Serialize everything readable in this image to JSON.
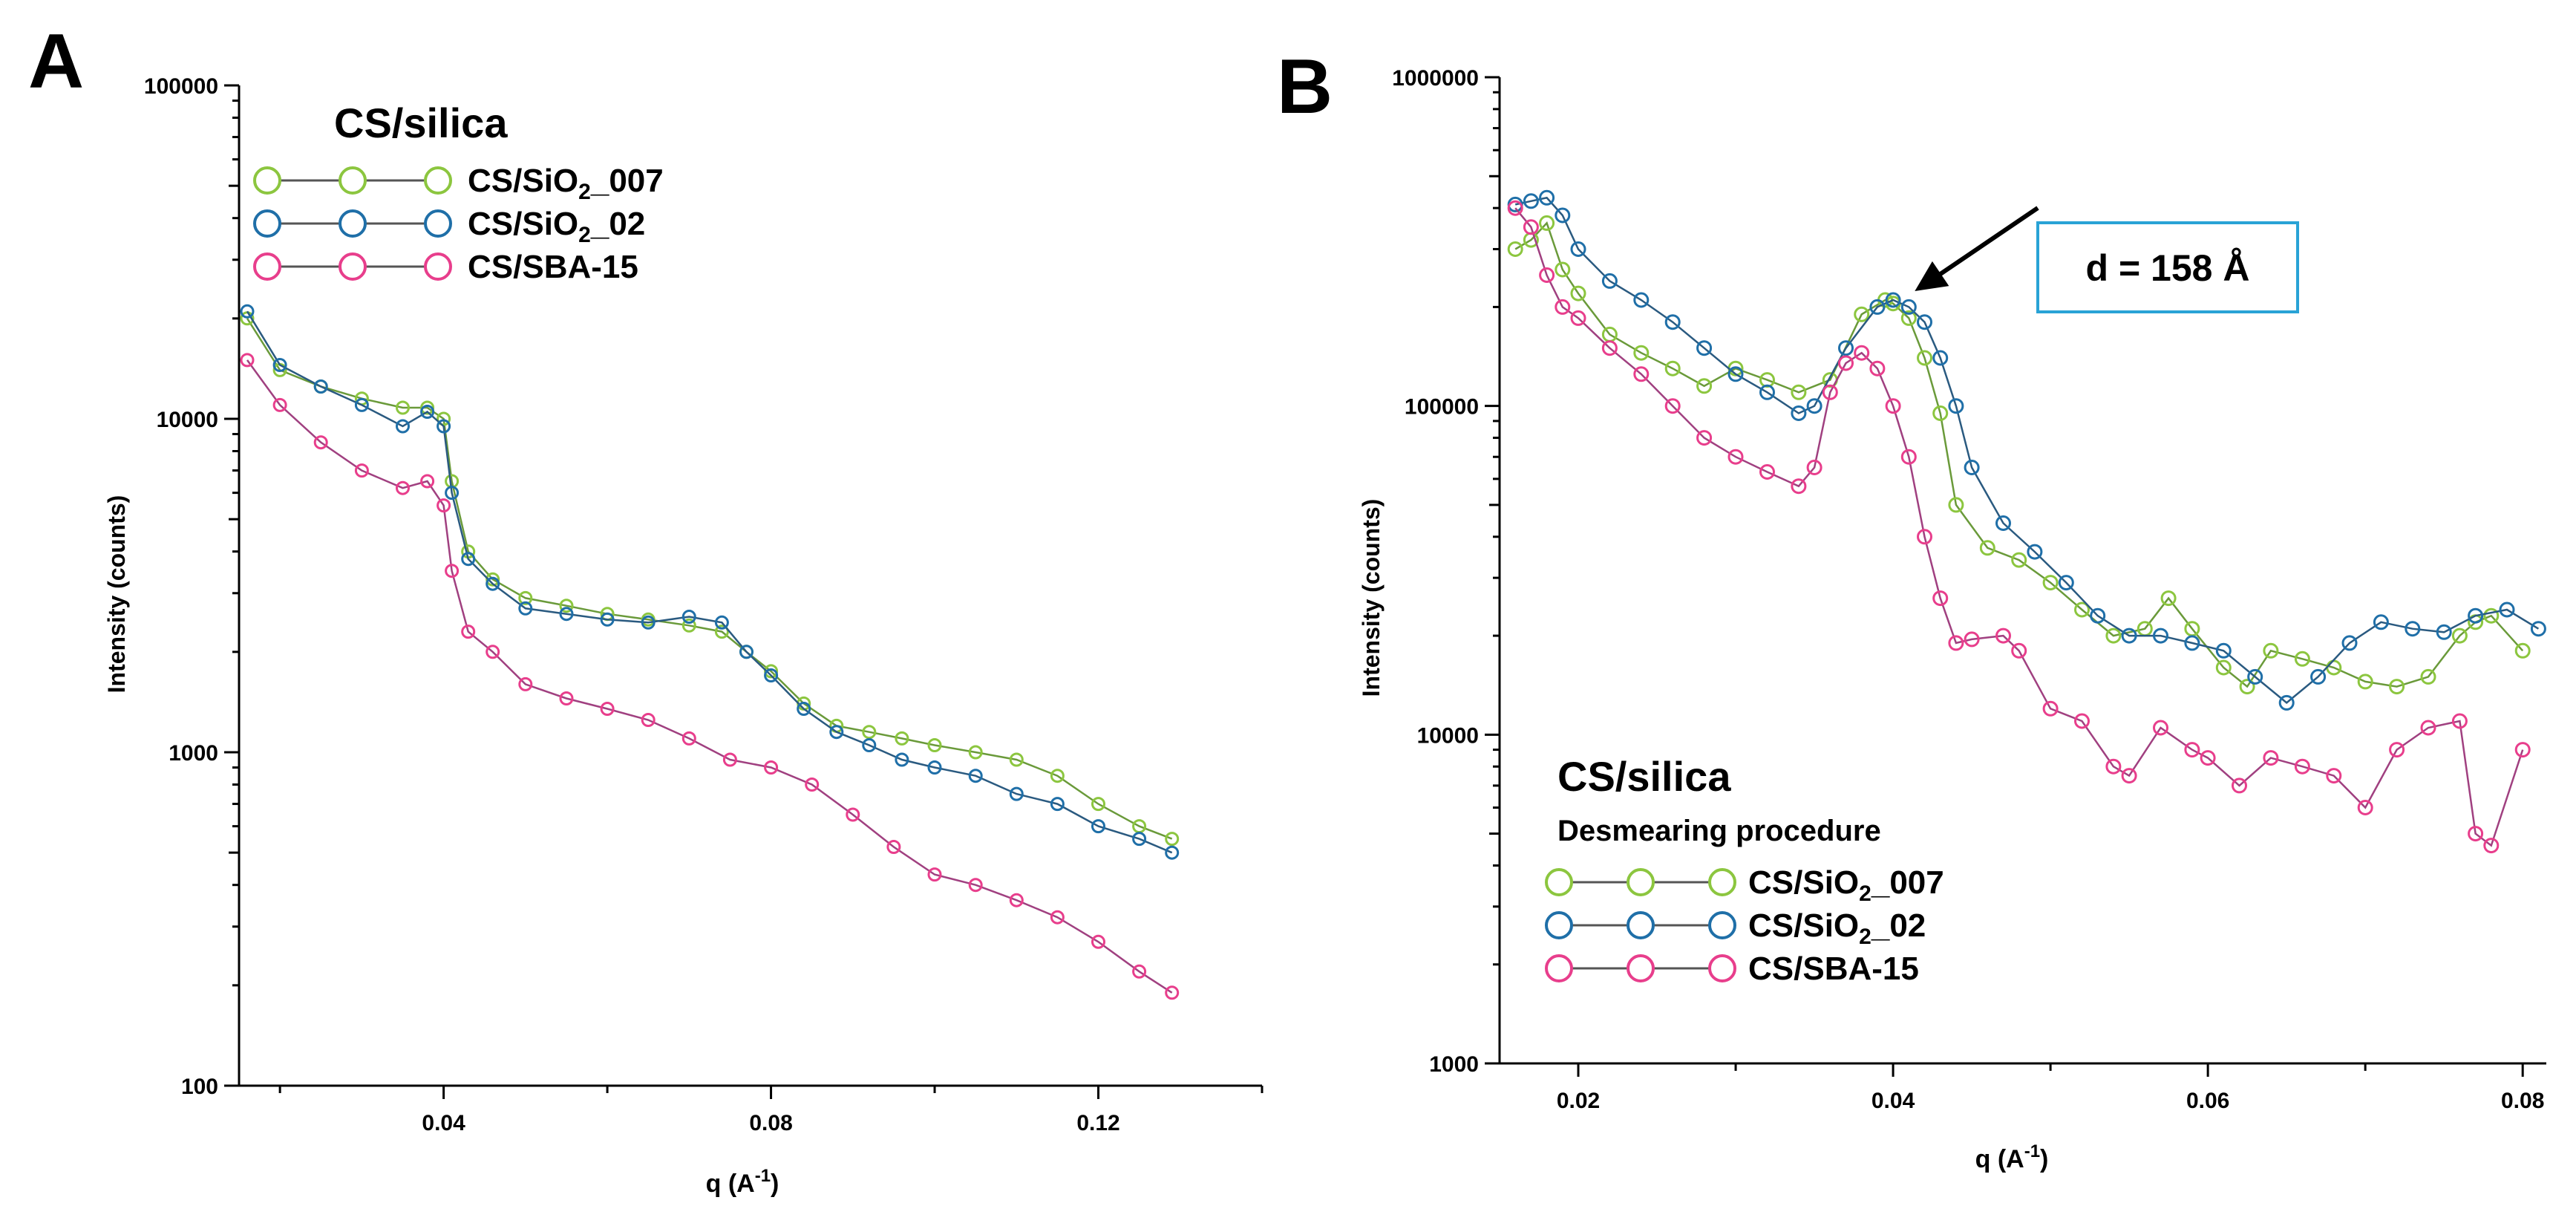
{
  "colors": {
    "green": "#8cc63f",
    "blue": "#1f6fa8",
    "pink": "#e83e8c",
    "line_green": "#6a9a3a",
    "line_blue": "#2a5a80",
    "line_pink": "#a04080",
    "annot_border": "#29a3d6"
  },
  "chart_data": [
    {
      "panel": "A",
      "type": "line",
      "title": "CS/silica",
      "xlabel": "q (A-1)",
      "xlabel_base": "q (A",
      "xlabel_sup": "-1",
      "xlabel_close": ")",
      "ylabel": "Intensity (counts)",
      "yscale": "log",
      "xlim": [
        0.015,
        0.14
      ],
      "ylim": [
        100,
        100000
      ],
      "xticks": [
        0.04,
        0.08,
        0.12
      ],
      "xtick_labels": [
        "0.04",
        "0.08",
        "0.12"
      ],
      "yticks": [
        100,
        1000,
        10000,
        100000
      ],
      "ytick_labels": [
        "100",
        "1000",
        "10000",
        "100000"
      ],
      "legend": [
        "CS/SiO2_007",
        "CS/SiO2_02",
        "CS/SBA-15"
      ],
      "series": [
        {
          "name": "CS/SiO2_007",
          "color": "green",
          "x": [
            0.016,
            0.02,
            0.025,
            0.03,
            0.035,
            0.038,
            0.04,
            0.041,
            0.043,
            0.046,
            0.05,
            0.055,
            0.06,
            0.065,
            0.07,
            0.074,
            0.077,
            0.08,
            0.084,
            0.088,
            0.092,
            0.096,
            0.1,
            0.105,
            0.11,
            0.115,
            0.12,
            0.125,
            0.129
          ],
          "y": [
            20000,
            14000,
            12500,
            11500,
            10800,
            10800,
            10000,
            6500,
            4000,
            3300,
            2900,
            2750,
            2600,
            2500,
            2400,
            2300,
            2000,
            1750,
            1400,
            1200,
            1150,
            1100,
            1050,
            1000,
            950,
            850,
            700,
            600,
            550
          ]
        },
        {
          "name": "CS/SiO2_02",
          "color": "blue",
          "x": [
            0.016,
            0.02,
            0.025,
            0.03,
            0.035,
            0.038,
            0.04,
            0.041,
            0.043,
            0.046,
            0.05,
            0.055,
            0.06,
            0.065,
            0.07,
            0.074,
            0.077,
            0.08,
            0.084,
            0.088,
            0.092,
            0.096,
            0.1,
            0.105,
            0.11,
            0.115,
            0.12,
            0.125,
            0.129
          ],
          "y": [
            21000,
            14500,
            12500,
            11000,
            9500,
            10500,
            9500,
            6000,
            3800,
            3200,
            2700,
            2600,
            2500,
            2450,
            2550,
            2450,
            2000,
            1700,
            1350,
            1150,
            1050,
            950,
            900,
            850,
            750,
            700,
            600,
            550,
            500
          ]
        },
        {
          "name": "CS/SBA-15",
          "color": "pink",
          "x": [
            0.016,
            0.02,
            0.025,
            0.03,
            0.035,
            0.038,
            0.04,
            0.041,
            0.043,
            0.046,
            0.05,
            0.055,
            0.06,
            0.065,
            0.07,
            0.075,
            0.08,
            0.085,
            0.09,
            0.095,
            0.1,
            0.105,
            0.11,
            0.115,
            0.12,
            0.125,
            0.129
          ],
          "y": [
            15000,
            11000,
            8500,
            7000,
            6200,
            6500,
            5500,
            3500,
            2300,
            2000,
            1600,
            1450,
            1350,
            1250,
            1100,
            950,
            900,
            800,
            650,
            520,
            430,
            400,
            360,
            320,
            270,
            220,
            190
          ]
        }
      ]
    },
    {
      "panel": "B",
      "type": "line",
      "title": "CS/silica",
      "subtitle": "Desmearing procedure",
      "xlabel": "q (A-1)",
      "xlabel_base": "q (A",
      "xlabel_sup": "-1",
      "xlabel_close": ")",
      "ylabel": "Intensity (counts)",
      "yscale": "log",
      "xlim": [
        0.015,
        0.0815
      ],
      "ylim": [
        1000,
        1000000
      ],
      "xticks": [
        0.02,
        0.04,
        0.06,
        0.08
      ],
      "xtick_labels": [
        "0.02",
        "0.04",
        "0.06",
        "0.08"
      ],
      "yticks": [
        1000,
        10000,
        100000,
        1000000
      ],
      "ytick_labels": [
        "1000",
        "10000",
        "100000",
        "1000000"
      ],
      "legend": [
        "CS/SiO2_007",
        "CS/SiO2_02",
        "CS/SBA-15"
      ],
      "annotation": "d = 158 Å",
      "annotation_target": [
        0.0402,
        210000
      ],
      "series": [
        {
          "name": "CS/SiO2_007",
          "color": "green",
          "x": [
            0.016,
            0.017,
            0.018,
            0.019,
            0.02,
            0.022,
            0.024,
            0.026,
            0.028,
            0.03,
            0.032,
            0.034,
            0.036,
            0.038,
            0.0395,
            0.04,
            0.041,
            0.042,
            0.043,
            0.044,
            0.046,
            0.048,
            0.05,
            0.052,
            0.054,
            0.056,
            0.0575,
            0.059,
            0.061,
            0.0625,
            0.064,
            0.066,
            0.068,
            0.07,
            0.072,
            0.074,
            0.076,
            0.077,
            0.078,
            0.08
          ],
          "y": [
            300000,
            320000,
            360000,
            260000,
            220000,
            165000,
            145000,
            130000,
            115000,
            130000,
            120000,
            110000,
            120000,
            190000,
            210000,
            205000,
            185000,
            140000,
            95000,
            50000,
            37000,
            34000,
            29000,
            24000,
            20000,
            21000,
            26000,
            21000,
            16000,
            14000,
            18000,
            17000,
            16000,
            14500,
            14000,
            15000,
            20000,
            22000,
            23000,
            18000
          ]
        },
        {
          "name": "CS/SiO2_02",
          "color": "blue",
          "x": [
            0.016,
            0.017,
            0.018,
            0.019,
            0.02,
            0.022,
            0.024,
            0.026,
            0.028,
            0.03,
            0.032,
            0.034,
            0.035,
            0.037,
            0.039,
            0.04,
            0.041,
            0.042,
            0.043,
            0.044,
            0.045,
            0.047,
            0.049,
            0.051,
            0.053,
            0.055,
            0.057,
            0.059,
            0.061,
            0.063,
            0.065,
            0.067,
            0.069,
            0.071,
            0.073,
            0.075,
            0.077,
            0.079,
            0.081
          ],
          "y": [
            410000,
            420000,
            430000,
            380000,
            300000,
            240000,
            210000,
            180000,
            150000,
            125000,
            110000,
            95000,
            100000,
            150000,
            200000,
            210000,
            200000,
            180000,
            140000,
            100000,
            65000,
            44000,
            36000,
            29000,
            23000,
            20000,
            20000,
            19000,
            18000,
            15000,
            12500,
            15000,
            19000,
            22000,
            21000,
            20500,
            23000,
            24000,
            21000
          ]
        },
        {
          "name": "CS/SBA-15",
          "color": "pink",
          "x": [
            0.016,
            0.017,
            0.018,
            0.019,
            0.02,
            0.022,
            0.024,
            0.026,
            0.028,
            0.03,
            0.032,
            0.034,
            0.035,
            0.036,
            0.037,
            0.038,
            0.039,
            0.04,
            0.041,
            0.042,
            0.043,
            0.044,
            0.045,
            0.047,
            0.048,
            0.05,
            0.052,
            0.054,
            0.055,
            0.057,
            0.059,
            0.06,
            0.062,
            0.064,
            0.066,
            0.068,
            0.07,
            0.072,
            0.074,
            0.076,
            0.077,
            0.078,
            0.08
          ],
          "y": [
            400000,
            350000,
            250000,
            200000,
            185000,
            150000,
            125000,
            100000,
            80000,
            70000,
            63000,
            57000,
            65000,
            110000,
            135000,
            145000,
            130000,
            100000,
            70000,
            40000,
            26000,
            19000,
            19500,
            20000,
            18000,
            12000,
            11000,
            8000,
            7500,
            10500,
            9000,
            8500,
            7000,
            8500,
            8000,
            7500,
            6000,
            9000,
            10500,
            11000,
            5000,
            4600,
            9000
          ]
        }
      ]
    }
  ]
}
